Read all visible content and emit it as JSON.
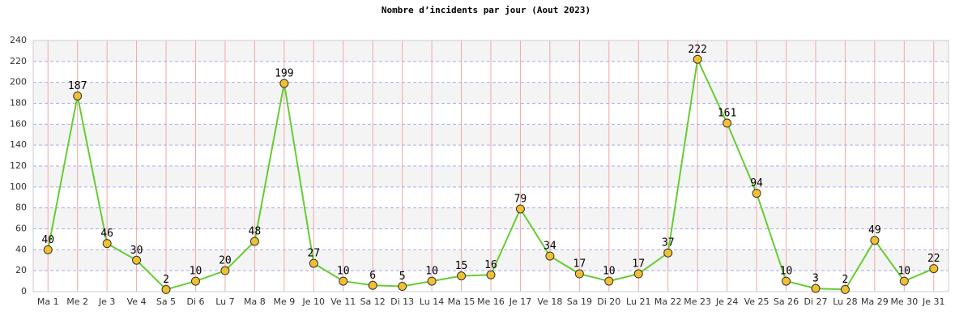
{
  "chart_data": {
    "type": "line",
    "title": "Nombre d’incidents par jour (Aout 2023)",
    "categories": [
      "Ma 1",
      "Me 2",
      "Je 3",
      "Ve 4",
      "Sa 5",
      "Di 6",
      "Lu 7",
      "Ma 8",
      "Me 9",
      "Je 10",
      "Ve 11",
      "Sa 12",
      "Di 13",
      "Lu 14",
      "Ma 15",
      "Me 16",
      "Je 17",
      "Ve 18",
      "Sa 19",
      "Di 20",
      "Lu 21",
      "Ma 22",
      "Me 23",
      "Je 24",
      "Ve 25",
      "Sa 26",
      "Di 27",
      "Lu 28",
      "Ma 29",
      "Me 30",
      "Je 31"
    ],
    "values": [
      40,
      187,
      46,
      30,
      2,
      10,
      20,
      48,
      199,
      27,
      10,
      6,
      5,
      10,
      15,
      16,
      79,
      34,
      17,
      10,
      17,
      37,
      222,
      161,
      94,
      10,
      3,
      2,
      49,
      10,
      22
    ],
    "color": "#66cc33",
    "marker_color": "#f0c030",
    "ylim": [
      0,
      240
    ],
    "yticks": [
      0,
      20,
      40,
      60,
      80,
      100,
      120,
      140,
      160,
      180,
      200,
      220,
      240
    ],
    "grid": true
  }
}
